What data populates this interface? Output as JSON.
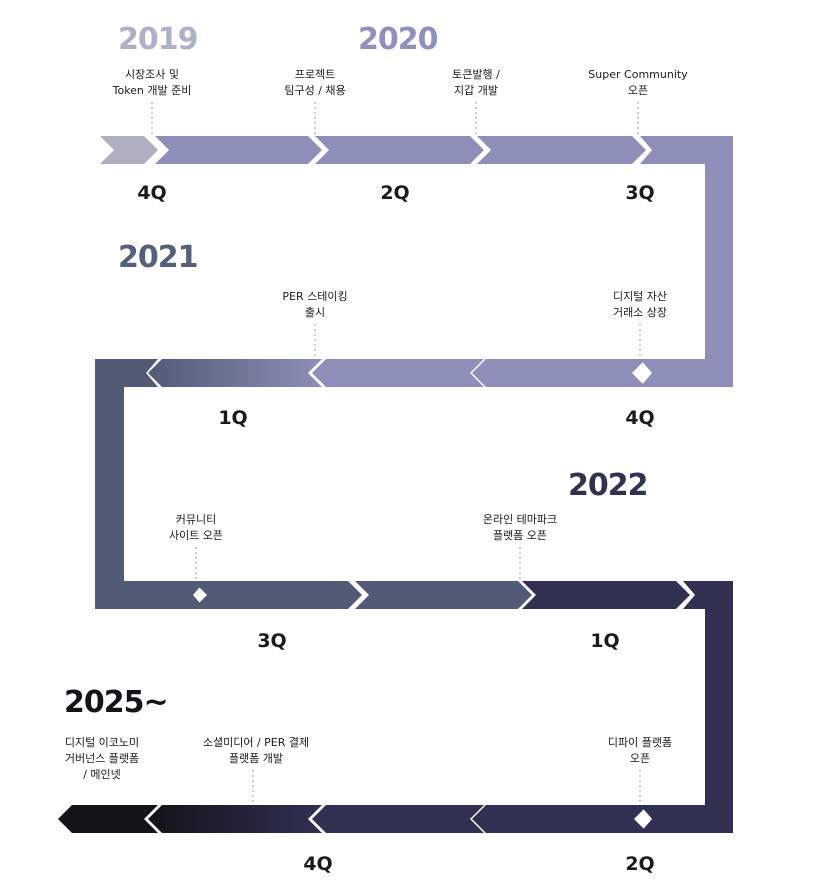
{
  "years": {
    "y2019": "2019",
    "y2020": "2020",
    "y2021": "2021",
    "y2022": "2022",
    "y2025": "2025~"
  },
  "quarters": {
    "r1_q1": "4Q",
    "r1_q2": "2Q",
    "r1_q3": "3Q",
    "r2_q1": "1Q",
    "r2_q2": "4Q",
    "r3_q1": "3Q",
    "r3_q2": "1Q",
    "r4_q1": "4Q",
    "r4_q2": "2Q"
  },
  "events": {
    "e1": [
      "시장조사 및",
      "Token 개발 준비"
    ],
    "e2": [
      "프로젝트",
      "팀구성 / 채용"
    ],
    "e3": [
      "토큰발행 /",
      "지갑 개발"
    ],
    "e4": [
      "Super Community",
      "오픈"
    ],
    "e5": [
      "PER 스테이킹",
      "출시"
    ],
    "e6": [
      "디지털 자산",
      "거래소 상장"
    ],
    "e7": [
      "커뮤니티",
      "사이트 오픈"
    ],
    "e8": [
      "온라인 테마파크",
      "플랫폼 오픈"
    ],
    "e9": [
      "디지털 이코노미",
      "거버넌스 플랫폼",
      "/ 메인넷"
    ],
    "e10": [
      "소셜미디어 / PER 결제",
      "플랫폼 개발"
    ],
    "e11": [
      "디파이 플랫폼",
      "오픈"
    ]
  },
  "colors": {
    "grey": "#aeb0c2",
    "lavender": "#8d8fb8",
    "slate": "#525a75",
    "navy": "#2f3052",
    "black": "#131318",
    "year2019": "#aeb0c8",
    "year2020": "#8f91bc",
    "year2021": "#56607b",
    "year2022": "#31324f",
    "year2025": "#141418"
  }
}
